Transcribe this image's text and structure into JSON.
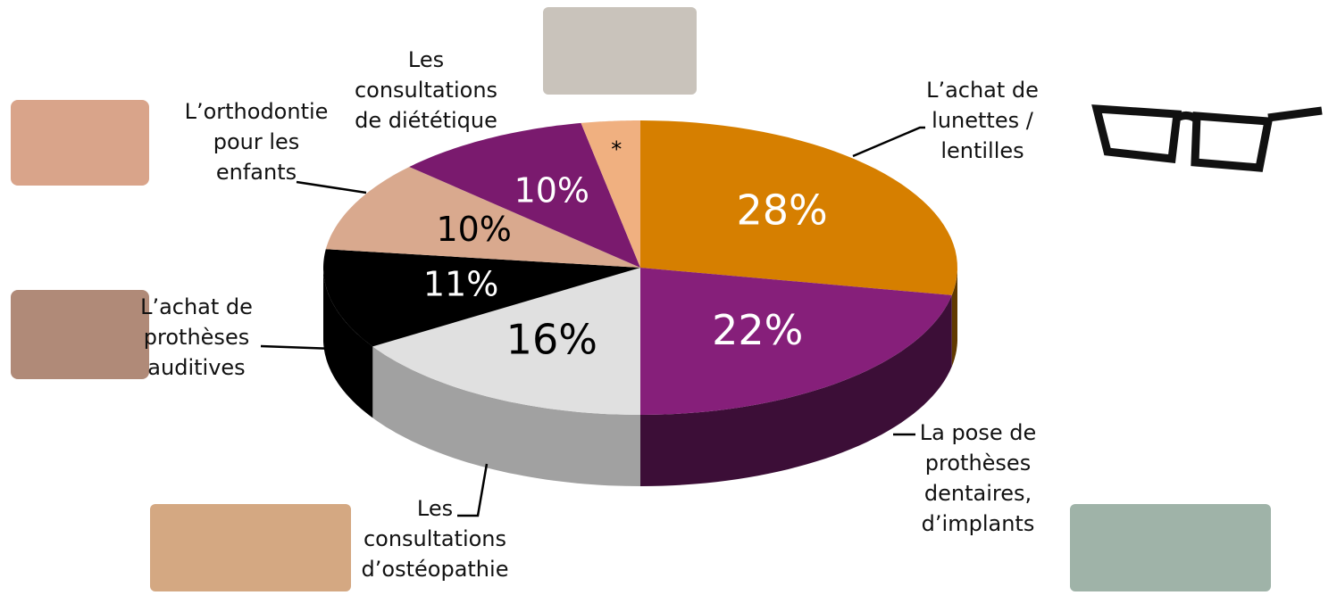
{
  "chart_data": {
    "type": "pie3d",
    "categories": [
      "L’achat de\nlunettes /\nlentilles",
      "La pose de\nprothèses\ndentaires,\nd’implants",
      "Les\nconsultations\nd’ostéopathie",
      "L’achat de\nprothèses\nauditives",
      "L’orthodontie\npour les\nenfants",
      "Les\nconsultations\nde diététique",
      null
    ],
    "values": [
      28,
      22,
      16,
      11,
      10,
      10,
      3
    ],
    "value_labels": [
      "28%",
      "22%",
      "16%",
      "11%",
      "10%",
      "10%",
      "*"
    ],
    "colors": [
      "#d67f00",
      "#861f7a",
      "#e0e0e0",
      "#000000",
      "#d9a98e",
      "#7a1a6e",
      "#f0b080"
    ]
  }
}
